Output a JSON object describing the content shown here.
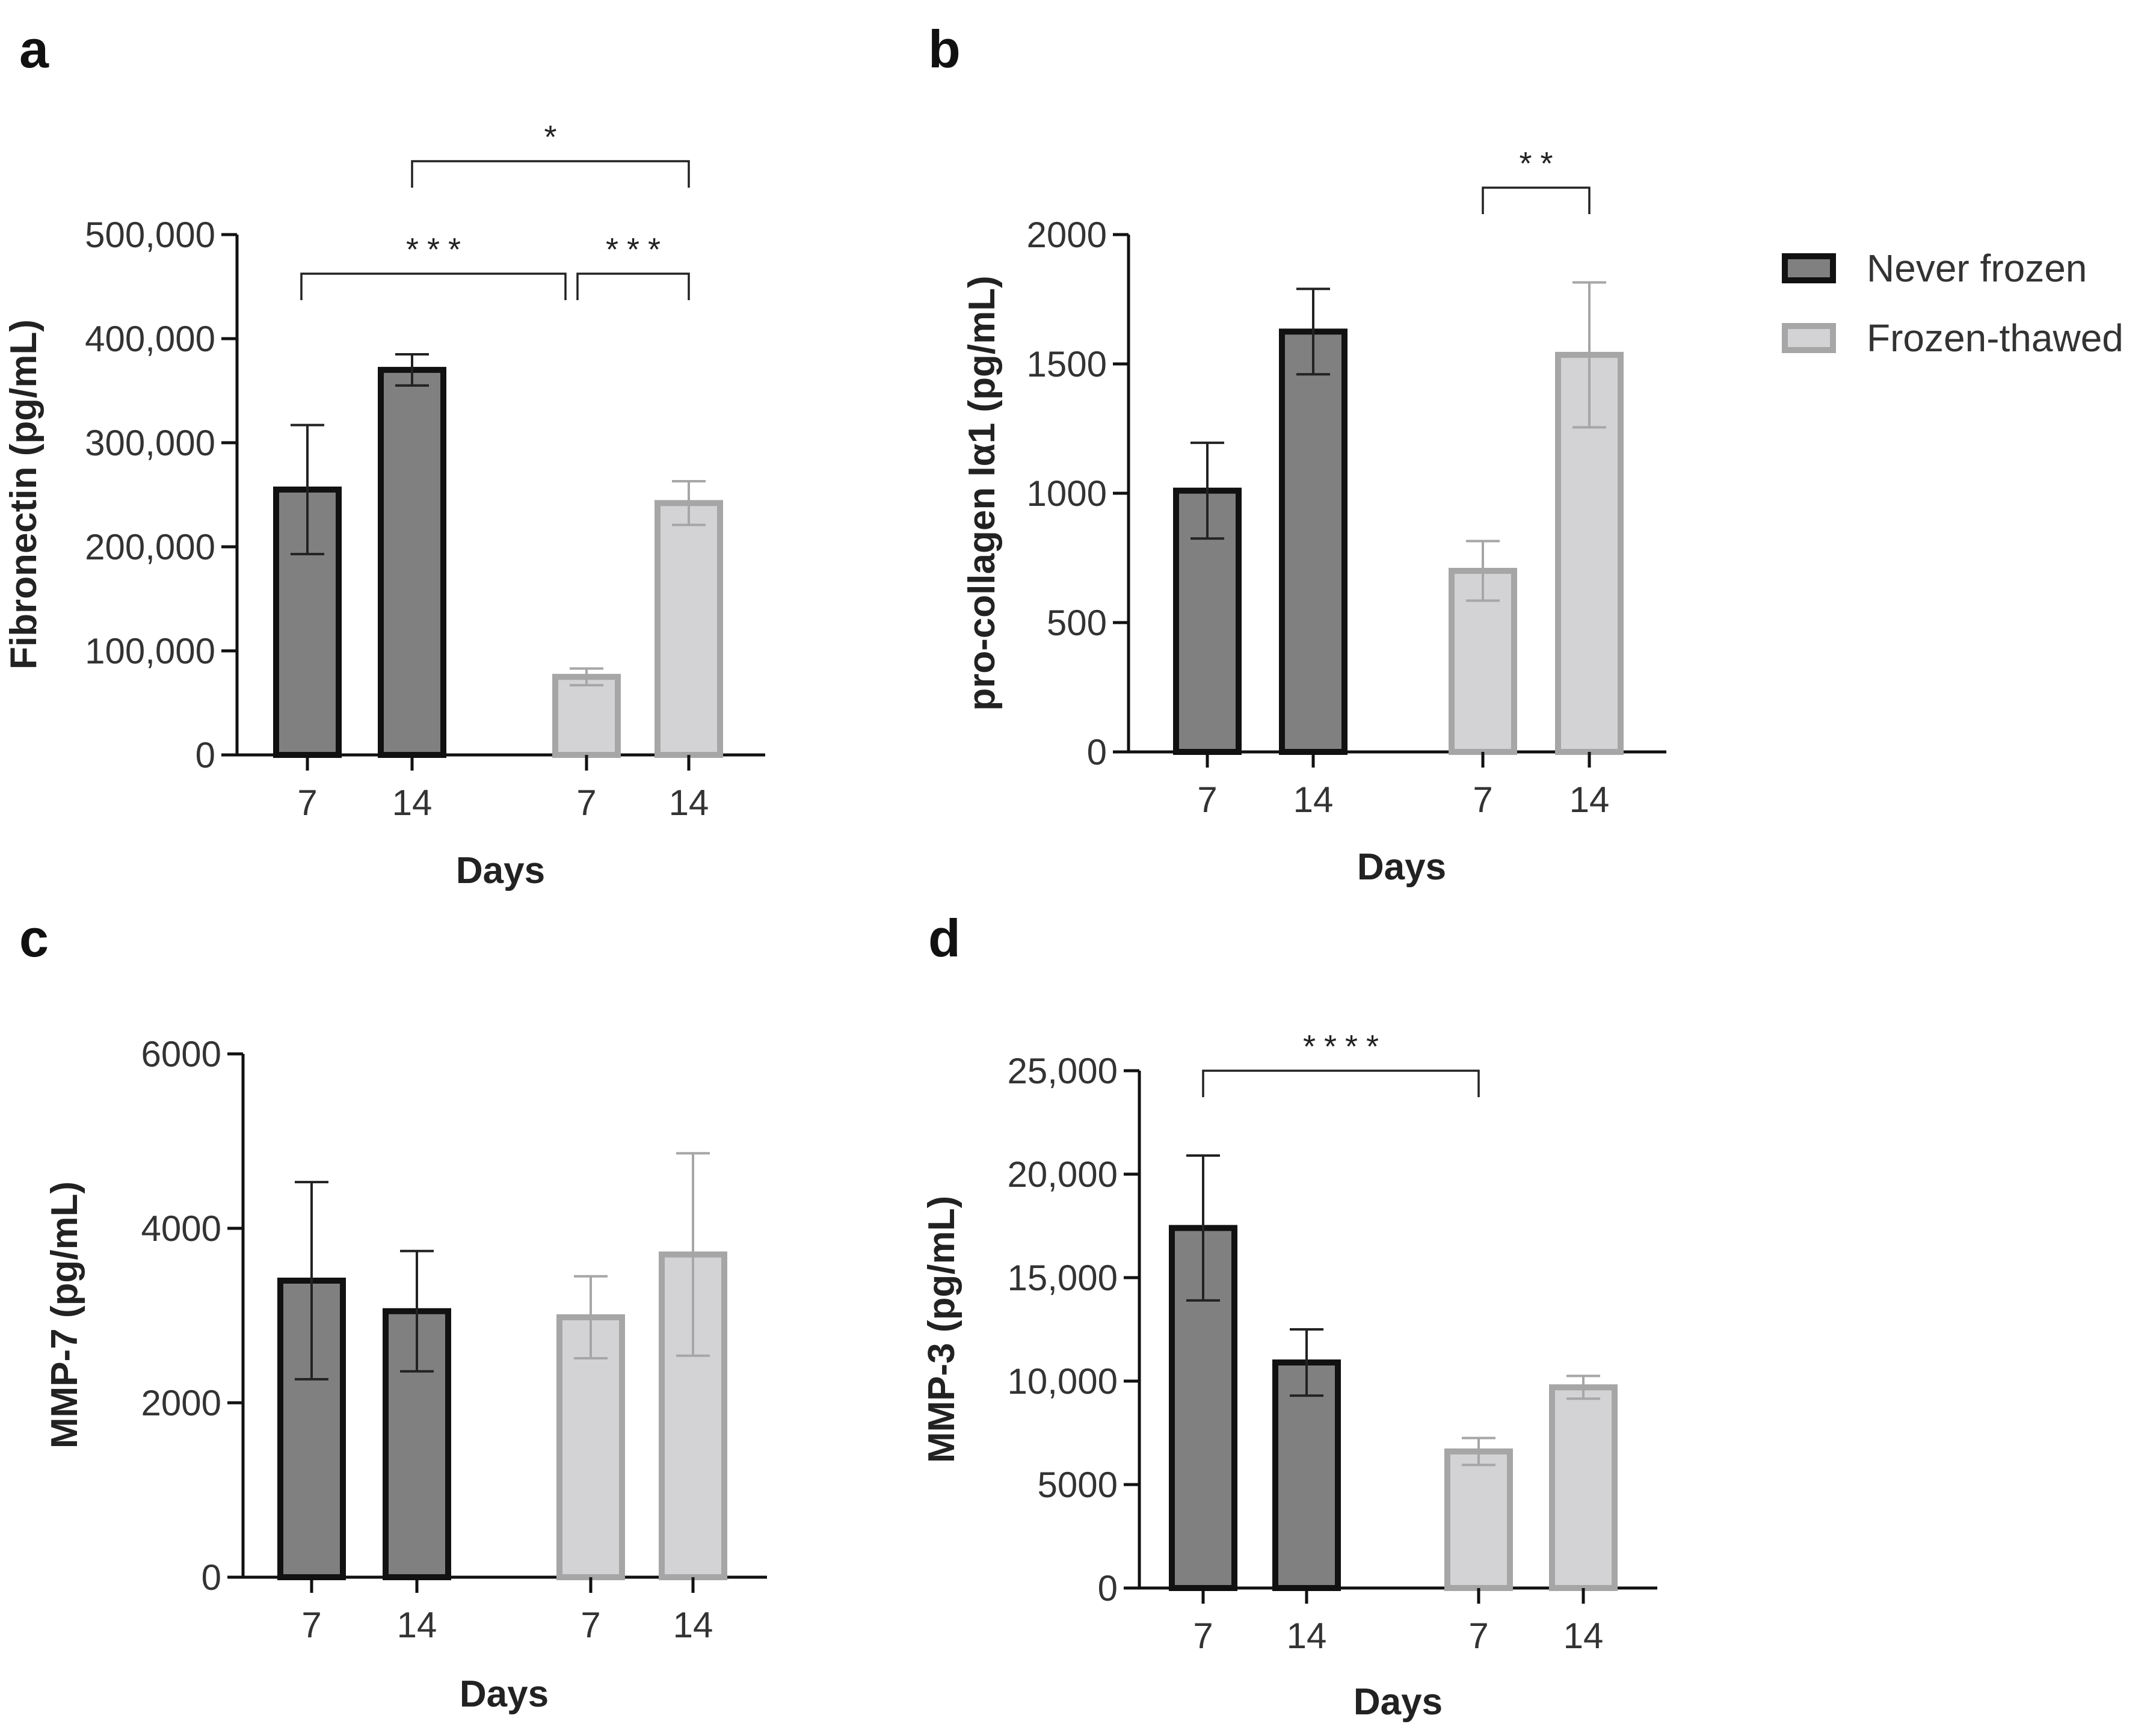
{
  "legend": {
    "entries": [
      {
        "label": "Never frozen",
        "fill": "#808080",
        "stroke": "#111111"
      },
      {
        "label": "Frozen-thawed",
        "fill": "#d3d3d6",
        "stroke": "#a6a6a6"
      }
    ]
  },
  "colors": {
    "never_frozen_fill": "#808080",
    "never_frozen_stroke": "#111111",
    "frozen_thawed_fill": "#d3d3d6",
    "frozen_thawed_stroke": "#a6a6a6",
    "axis": "#111111"
  },
  "chart_data": [
    {
      "panel": "a",
      "type": "bar",
      "ylabel": "Fibronectin (pg/mL)",
      "xlabel": "Days",
      "ylim": [
        0,
        500000
      ],
      "yticks": [
        0,
        100000,
        200000,
        300000,
        400000,
        500000
      ],
      "ytick_labels": [
        "0",
        "100,000",
        "200,000",
        "300,000",
        "400,000",
        "500,000"
      ],
      "categories": [
        "7",
        "14",
        "7",
        "14"
      ],
      "groups": [
        "Never frozen",
        "Never frozen",
        "Frozen-thawed",
        "Frozen-thawed"
      ],
      "values": [
        255000,
        370000,
        75000,
        242000
      ],
      "errors": [
        62000,
        15000,
        8000,
        21000
      ],
      "significance": [
        {
          "from": 0,
          "to": 2,
          "label": "***"
        },
        {
          "from": 2,
          "to": 3,
          "label": "***"
        },
        {
          "from": 1,
          "to": 3,
          "label": "*"
        }
      ]
    },
    {
      "panel": "b",
      "type": "bar",
      "ylabel": "pro-collagen Iα1 (pg/mL)",
      "xlabel": "Days",
      "ylim": [
        0,
        2000
      ],
      "yticks": [
        0,
        500,
        1000,
        1500,
        2000
      ],
      "ytick_labels": [
        "0",
        "500",
        "1000",
        "1500",
        "2000"
      ],
      "categories": [
        "7",
        "14",
        "7",
        "14"
      ],
      "groups": [
        "Never frozen",
        "Never frozen",
        "Frozen-thawed",
        "Frozen-thawed"
      ],
      "values": [
        1010,
        1625,
        700,
        1535
      ],
      "errors": [
        185,
        165,
        115,
        280
      ],
      "significance": [
        {
          "from": 2,
          "to": 3,
          "label": "**"
        }
      ]
    },
    {
      "panel": "c",
      "type": "bar",
      "ylabel": "MMP-7 (pg/mL)",
      "xlabel": "Days",
      "ylim": [
        0,
        6000
      ],
      "yticks": [
        0,
        2000,
        4000,
        6000
      ],
      "ytick_labels": [
        "0",
        "2000",
        "4000",
        "6000"
      ],
      "categories": [
        "7",
        "14",
        "7",
        "14"
      ],
      "groups": [
        "Never frozen",
        "Never frozen",
        "Frozen-thawed",
        "Frozen-thawed"
      ],
      "values": [
        3400,
        3050,
        2980,
        3700
      ],
      "errors": [
        1130,
        690,
        470,
        1160
      ],
      "significance": []
    },
    {
      "panel": "d",
      "type": "bar",
      "ylabel": "MMP-3 (pg/mL)",
      "xlabel": "Days",
      "ylim": [
        0,
        25000
      ],
      "yticks": [
        0,
        5000,
        10000,
        15000,
        20000,
        25000
      ],
      "ytick_labels": [
        "0",
        "5000",
        "10,000",
        "15,000",
        "20,000",
        "25,000"
      ],
      "categories": [
        "7",
        "14",
        "7",
        "14"
      ],
      "groups": [
        "Never frozen",
        "Never frozen",
        "Frozen-thawed",
        "Frozen-thawed"
      ],
      "values": [
        17400,
        10900,
        6600,
        9700
      ],
      "errors": [
        3500,
        1600,
        650,
        550
      ],
      "significance": [
        {
          "from": 0,
          "to": 2,
          "label": "****"
        }
      ]
    }
  ]
}
